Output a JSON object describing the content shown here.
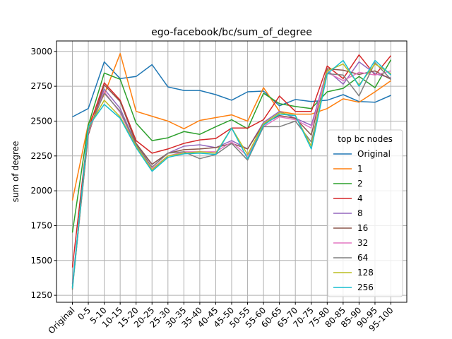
{
  "chart_data": {
    "type": "line",
    "title": "ego-facebook/bc/sum_of_degree",
    "xlabel": "",
    "ylabel": "sum of degree",
    "ylim": [
      1200,
      3075
    ],
    "yticks": [
      1250,
      1500,
      1750,
      2000,
      2250,
      2500,
      2750,
      3000
    ],
    "grid": true,
    "legend_title": "top bc nodes",
    "legend_position": "right",
    "categories": [
      "Original",
      "0-5",
      "5-10",
      "10-15",
      "15-20",
      "20-25",
      "25-30",
      "30-35",
      "35-40",
      "40-45",
      "45-50",
      "50-55",
      "55-60",
      "60-65",
      "65-70",
      "70-75",
      "75-80",
      "80-85",
      "85-90",
      "90-95",
      "95-100"
    ],
    "series": [
      {
        "name": "Original",
        "color": "#1f77b4",
        "values": [
          2530,
          2590,
          2925,
          2805,
          2820,
          2905,
          2745,
          2720,
          2720,
          2690,
          2650,
          2710,
          2715,
          2610,
          2655,
          2640,
          2650,
          2690,
          2640,
          2635,
          2685
        ]
      },
      {
        "name": "1",
        "color": "#ff7f0e",
        "values": [
          1930,
          2480,
          2690,
          2985,
          2570,
          2535,
          2500,
          2445,
          2505,
          2525,
          2545,
          2500,
          2740,
          2570,
          2550,
          2550,
          2590,
          2660,
          2635,
          2710,
          2790
        ]
      },
      {
        "name": "2",
        "color": "#2ca02c",
        "values": [
          1700,
          2470,
          2845,
          2800,
          2485,
          2360,
          2380,
          2425,
          2405,
          2460,
          2510,
          2445,
          2700,
          2625,
          2605,
          2590,
          2710,
          2735,
          2820,
          2740,
          2940
        ]
      },
      {
        "name": "4",
        "color": "#d62728",
        "values": [
          1450,
          2440,
          2775,
          2650,
          2360,
          2270,
          2300,
          2340,
          2365,
          2375,
          2450,
          2450,
          2510,
          2680,
          2570,
          2570,
          2895,
          2805,
          2975,
          2830,
          2970
        ]
      },
      {
        "name": "8",
        "color": "#9467bd",
        "values": [
          1330,
          2410,
          2730,
          2590,
          2330,
          2190,
          2270,
          2320,
          2330,
          2310,
          2360,
          2300,
          2490,
          2570,
          2520,
          2470,
          2865,
          2765,
          2925,
          2840,
          2810
        ]
      },
      {
        "name": "16",
        "color": "#8c564b",
        "values": [
          1310,
          2400,
          2760,
          2640,
          2340,
          2190,
          2270,
          2295,
          2300,
          2310,
          2340,
          2300,
          2480,
          2540,
          2520,
          2400,
          2875,
          2865,
          2835,
          2860,
          2800
        ]
      },
      {
        "name": "32",
        "color": "#e377c2",
        "values": [
          1300,
          2420,
          2710,
          2560,
          2320,
          2160,
          2250,
          2280,
          2280,
          2280,
          2350,
          2250,
          2460,
          2530,
          2510,
          2450,
          2850,
          2790,
          2850,
          2830,
          2860
        ]
      },
      {
        "name": "64",
        "color": "#7f7f7f",
        "values": [
          1290,
          2430,
          2700,
          2570,
          2330,
          2170,
          2270,
          2280,
          2230,
          2260,
          2340,
          2220,
          2460,
          2460,
          2500,
          2350,
          2840,
          2830,
          2680,
          2920,
          2800
        ]
      },
      {
        "name": "128",
        "color": "#bcbd22",
        "values": [
          1300,
          2450,
          2650,
          2530,
          2320,
          2150,
          2250,
          2270,
          2280,
          2270,
          2450,
          2260,
          2480,
          2560,
          2540,
          2320,
          2860,
          2910,
          2760,
          2910,
          2840
        ]
      },
      {
        "name": "256",
        "color": "#17becf",
        "values": [
          1300,
          2460,
          2620,
          2520,
          2310,
          2140,
          2240,
          2265,
          2270,
          2260,
          2450,
          2230,
          2470,
          2550,
          2540,
          2300,
          2840,
          2935,
          2750,
          2935,
          2830
        ]
      }
    ]
  }
}
